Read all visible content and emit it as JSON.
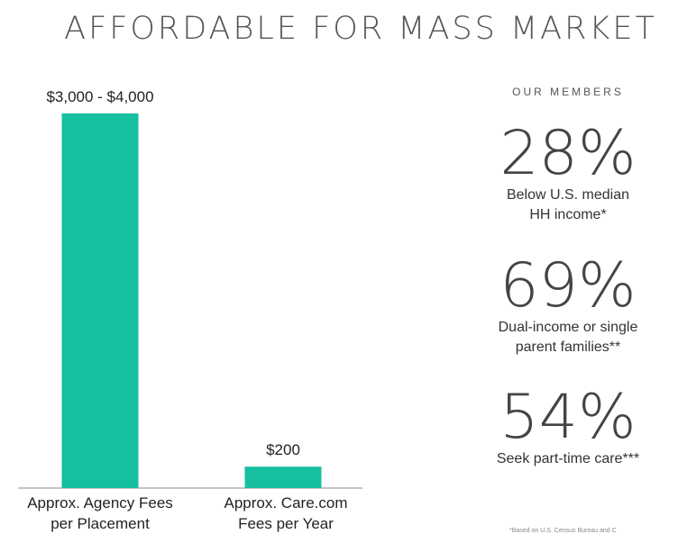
{
  "title": "AFFORDABLE FOR MASS MARKET",
  "colors": {
    "bar": "#16bf9f",
    "axis": "#888888"
  },
  "chart_data": {
    "type": "bar",
    "categories": [
      "Approx. Agency Fees\nper Placement",
      "Approx. Care.com\nFees per Year"
    ],
    "values": [
      3500,
      200
    ],
    "data_labels": [
      "$3,000 - $4,000",
      "$200"
    ],
    "ylim": [
      0,
      3500
    ],
    "grid": false
  },
  "members": {
    "heading": "OUR MEMBERS",
    "stats": [
      {
        "value": "28%",
        "desc": "Below U.S. median\nHH income*"
      },
      {
        "value": "69%",
        "desc": "Dual-income or single\nparent families**"
      },
      {
        "value": "54%",
        "desc": "Seek part-time care***"
      }
    ]
  },
  "footnote": "*Based on U.S. Census Bureau and C"
}
